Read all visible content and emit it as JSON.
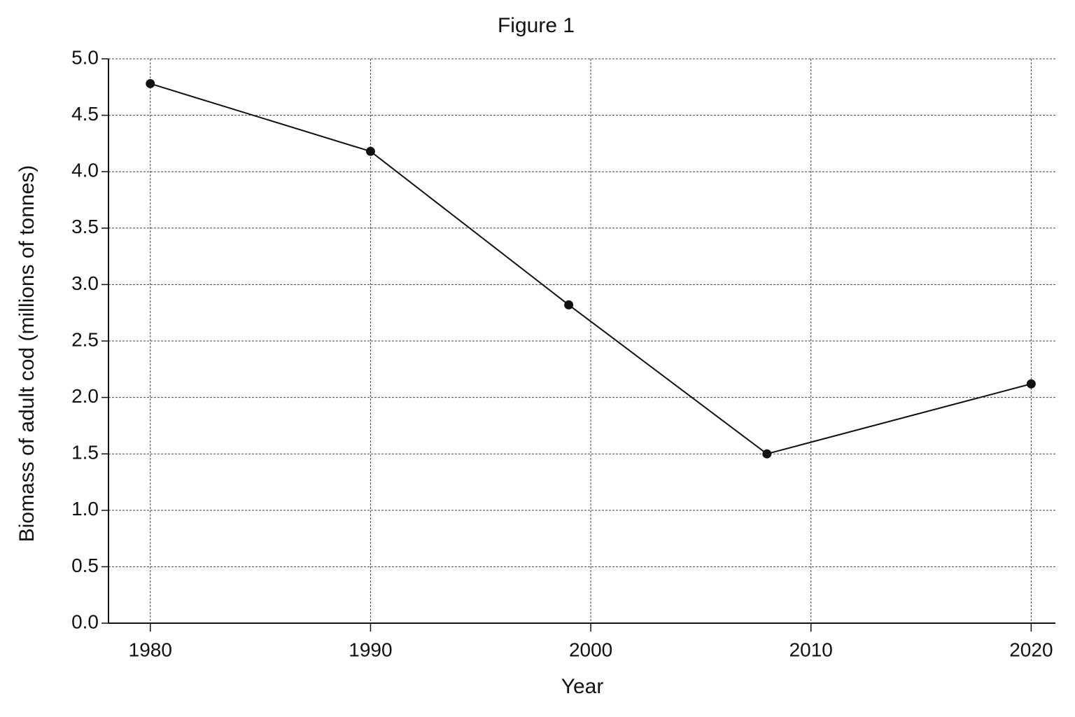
{
  "chart_data": {
    "type": "line",
    "title": "Figure 1",
    "x_label": "Year",
    "y_label": "Biomass of adult cod (millions of tonnes)",
    "x": [
      1980,
      1990,
      1999,
      2008,
      2020
    ],
    "series": [
      {
        "name": "Biomass",
        "color": "#111111",
        "values": [
          4.78,
          4.18,
          2.82,
          1.5,
          2.12
        ]
      }
    ],
    "xlim": [
      1978.1,
      2021.1
    ],
    "xticks": [
      1980,
      1990,
      2000,
      2010,
      2020
    ],
    "ylim": [
      0,
      5
    ],
    "yticks": [
      {
        "value": 0,
        "label": "0.0"
      },
      0.5,
      {
        "value": 1,
        "label": "1.0"
      },
      1.5,
      {
        "value": 2,
        "label": "2.0"
      },
      2.5,
      {
        "value": 3,
        "label": "3.0"
      },
      3.5,
      {
        "value": 4,
        "label": "4.0"
      },
      4.5,
      {
        "value": 5,
        "label": "5.0"
      }
    ],
    "grid": true
  }
}
